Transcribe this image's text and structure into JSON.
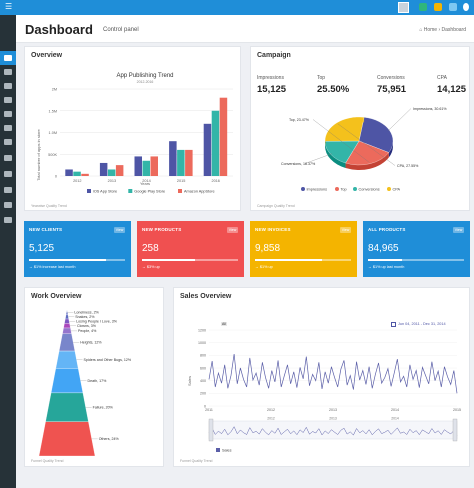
{
  "header": {
    "title": "Dashboard",
    "subtitle": "Control panel",
    "breadcrumb_home": "Home",
    "breadcrumb_current": "Dashboard"
  },
  "colors": {
    "topbar": "#1f8ed8",
    "sidebar": "#263238",
    "clients": "#1f8ed8",
    "products": "#f05050",
    "invoices": "#f4b400",
    "all_products": "#1f8ed8"
  },
  "icons": {
    "menu": "hamburger-icon",
    "home": "home-icon",
    "user_menu": "avatar"
  },
  "overview": {
    "title": "Overview",
    "credits": "Yearwise Quality Trend",
    "chart_data": {
      "type": "bar",
      "title": "App Publishing Trend",
      "subtitle": "2012-2016",
      "xlabel": "Years",
      "ylabel": "Total number of apps in store",
      "categories": [
        "2012",
        "2013",
        "2014",
        "2015",
        "2016"
      ],
      "yticks": [
        "0",
        "500K",
        "1.0M",
        "1.5M",
        "2M"
      ],
      "ylim": [
        0,
        2000000
      ],
      "series": [
        {
          "name": "iOS App Store",
          "color": "#4e55a5",
          "values": [
            150000,
            300000,
            450000,
            800000,
            1200000
          ]
        },
        {
          "name": "Google Play Store",
          "color": "#33b5a8",
          "values": [
            100000,
            150000,
            350000,
            600000,
            1500000
          ]
        },
        {
          "name": "Amazon AppStore",
          "color": "#ec6a5c",
          "values": [
            50000,
            250000,
            450000,
            600000,
            1800000
          ]
        }
      ]
    }
  },
  "campaign": {
    "title": "Campaign",
    "credits": "Campaign Quality Trend",
    "stats": [
      {
        "label": "Impressions",
        "value": "15,125"
      },
      {
        "label": "Top",
        "value": "25.50%"
      },
      {
        "label": "Conversions",
        "value": "75,951"
      },
      {
        "label": "CPA",
        "value": "14,125"
      }
    ],
    "chart_data": {
      "type": "pie",
      "slices": [
        {
          "name": "Impressions",
          "value": 30.61,
          "label": "Impressions, 30.61%",
          "color": "#4e55a5"
        },
        {
          "name": "Top",
          "value": 23.47,
          "label": "Top, 23.47%",
          "color": "#ec6a5c"
        },
        {
          "name": "Conversions",
          "value": 18.37,
          "label": "Conversions, 18.37%",
          "color": "#33b5a8"
        },
        {
          "name": "CPA",
          "value": 27.55,
          "label": "CPA, 27.55%",
          "color": "#f4c11c"
        }
      ],
      "legend": [
        "Impressions",
        "Top",
        "Conversions",
        "CPA"
      ]
    }
  },
  "kpis": [
    {
      "title": "NEW CLIENTS",
      "value": "5,125",
      "note": "→ $1% increase last month",
      "view": "View",
      "color": "#1f8ed8",
      "progress": 0.8
    },
    {
      "title": "NEW PRODUCTS",
      "value": "258",
      "note": "→ $3% up",
      "view": "View",
      "color": "#f05050",
      "progress": 0.55
    },
    {
      "title": "NEW INVOICES",
      "value": "9,858",
      "note": "→ $1% up",
      "view": "View",
      "color": "#f4b400",
      "progress": 0.7
    },
    {
      "title": "ALL PRODUCTS",
      "value": "84,965",
      "note": "→ $1% up last month",
      "view": "View",
      "color": "#1f8ed8",
      "progress": 0.35
    }
  ],
  "work": {
    "title": "Work Overview",
    "credits": "Funnel Quality Trend",
    "chart_data": {
      "type": "pyramid",
      "items": [
        {
          "name": "Loneliness",
          "value": 2,
          "label": "Loneliness, 2%",
          "color": "#3f51b5"
        },
        {
          "name": "Snakes",
          "value": 2,
          "label": "Snakes, 2%",
          "color": "#5c6bc0"
        },
        {
          "name": "Losing People I Love",
          "value": 3,
          "label": "Losing People I Love, 3%",
          "color": "#7e57c2"
        },
        {
          "name": "Clowns",
          "value": 3,
          "label": "Clowns, 3%",
          "color": "#ab47bc"
        },
        {
          "name": "People",
          "value": 4,
          "label": "People, 4%",
          "color": "#9575cd"
        },
        {
          "name": "Heights",
          "value": 12,
          "label": "Heights, 12%",
          "color": "#7986cb"
        },
        {
          "name": "Spiders and Other Bugs",
          "value": 12,
          "label": "Spiders and Other Bugs, 12%",
          "color": "#64b5f6"
        },
        {
          "name": "Death",
          "value": 17,
          "label": "Death, 17%",
          "color": "#42a5f5"
        },
        {
          "name": "Failure",
          "value": 20,
          "label": "Failure, 20%",
          "color": "#26a69a"
        },
        {
          "name": "Others",
          "value": 24,
          "label": "Others, 24%",
          "color": "#ef5350"
        }
      ]
    }
  },
  "sales": {
    "title": "Sales Overview",
    "credits": "Funnel Quality Trend",
    "zoom_label": "All",
    "date_range": "Jun 04, 2011 - Dec 31, 2014",
    "chart_data": {
      "type": "line",
      "ylabel": "Sales",
      "ylim": [
        0,
        1200
      ],
      "yticks": [
        "0",
        "200",
        "400",
        "600",
        "800",
        "1000",
        "1200"
      ],
      "xticks": [
        "2011",
        "2012",
        "2013",
        "2014",
        "2015"
      ],
      "nav_xticks": [
        "2012",
        "2013",
        "2014"
      ],
      "legend": [
        "Sales"
      ],
      "color": "#5b5fa8",
      "values": [
        420,
        710,
        300,
        520,
        360,
        650,
        280,
        480,
        820,
        350,
        600,
        420,
        300,
        760,
        410,
        520,
        330,
        690,
        450,
        280,
        560,
        380,
        720,
        300,
        480,
        650,
        350,
        540,
        290,
        610,
        430,
        780,
        320,
        500,
        400,
        690,
        270,
        540,
        360,
        620,
        450,
        300,
        580,
        720,
        330,
        480,
        260,
        700,
        410,
        560,
        340,
        620,
        280,
        500,
        680,
        360,
        450,
        590,
        310,
        520,
        740,
        380,
        470,
        300,
        650,
        420,
        560,
        290,
        610,
        480,
        350,
        700,
        400,
        550,
        300,
        620,
        460,
        340,
        560,
        200
      ]
    }
  }
}
